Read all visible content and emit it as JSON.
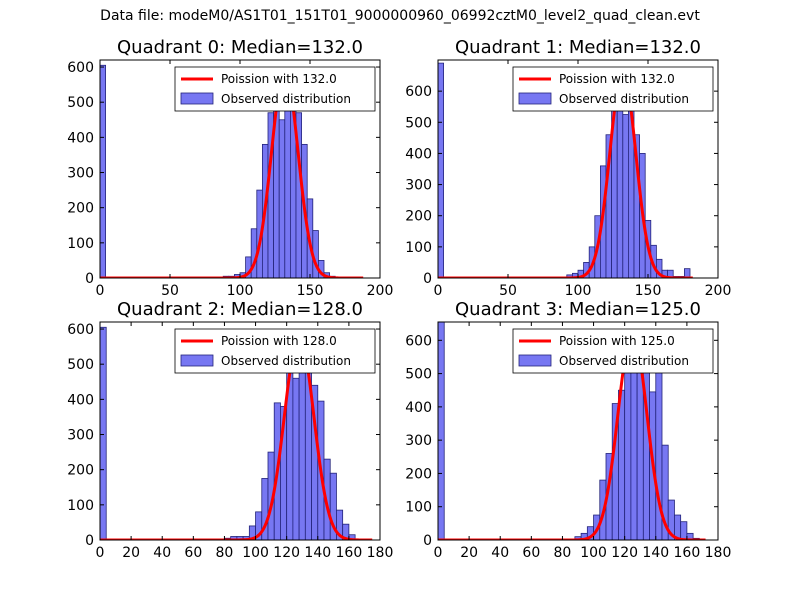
{
  "suptitle": "Data file: modeM0/AS1T01_151T01_9000000960_06992cztM0_level2_quad_clean.evt",
  "colors": {
    "bar_fill": "#7777f2",
    "bar_edge": "#23237a",
    "curve": "#ff0000",
    "axis": "#000000"
  },
  "chart_data": [
    {
      "type": "bar",
      "title": "Quadrant 0: Median=132.0",
      "median": 132.0,
      "xlim": [
        0,
        200
      ],
      "xticks": [
        0,
        50,
        100,
        150,
        200
      ],
      "ylim": [
        0,
        620
      ],
      "yticks": [
        0,
        100,
        200,
        300,
        400,
        500,
        600
      ],
      "bin_width": 4,
      "bins": [
        [
          0,
          605
        ],
        [
          88,
          5
        ],
        [
          92,
          5
        ],
        [
          96,
          10
        ],
        [
          100,
          15
        ],
        [
          104,
          60
        ],
        [
          108,
          140
        ],
        [
          112,
          250
        ],
        [
          116,
          380
        ],
        [
          120,
          470
        ],
        [
          124,
          565
        ],
        [
          128,
          450
        ],
        [
          132,
          585
        ],
        [
          136,
          550
        ],
        [
          140,
          470
        ],
        [
          144,
          380
        ],
        [
          148,
          225
        ],
        [
          152,
          135
        ],
        [
          156,
          50
        ],
        [
          160,
          15
        ],
        [
          164,
          5
        ]
      ],
      "curve_label": "Poission with 132.0",
      "hist_label": "Observed distribution",
      "curve_peak": 590,
      "curve_sigma": 9.5,
      "curve_x_min": 0,
      "curve_x_max": 188
    },
    {
      "type": "bar",
      "title": "Quadrant 1: Median=132.0",
      "median": 132.0,
      "xlim": [
        0,
        200
      ],
      "xticks": [
        0,
        50,
        100,
        150,
        200
      ],
      "ylim": [
        0,
        700
      ],
      "yticks": [
        0,
        100,
        200,
        300,
        400,
        500,
        600
      ],
      "bin_width": 4,
      "bins": [
        [
          0,
          690
        ],
        [
          92,
          10
        ],
        [
          96,
          15
        ],
        [
          100,
          25
        ],
        [
          104,
          50
        ],
        [
          108,
          100
        ],
        [
          112,
          200
        ],
        [
          116,
          360
        ],
        [
          120,
          460
        ],
        [
          124,
          570
        ],
        [
          128,
          660
        ],
        [
          132,
          525
        ],
        [
          136,
          650
        ],
        [
          140,
          460
        ],
        [
          144,
          400
        ],
        [
          148,
          185
        ],
        [
          152,
          105
        ],
        [
          156,
          60
        ],
        [
          160,
          25
        ],
        [
          164,
          25
        ],
        [
          168,
          5
        ],
        [
          172,
          5
        ],
        [
          176,
          30
        ]
      ],
      "curve_label": "Poission with 132.0",
      "hist_label": "Observed distribution",
      "curve_peak": 660,
      "curve_sigma": 9.3,
      "curve_x_min": 0,
      "curve_x_max": 182
    },
    {
      "type": "bar",
      "title": "Quadrant 2: Median=128.0",
      "median": 128.0,
      "xlim": [
        0,
        180
      ],
      "xticks": [
        0,
        20,
        40,
        60,
        80,
        100,
        120,
        140,
        160,
        180
      ],
      "ylim": [
        0,
        620
      ],
      "yticks": [
        0,
        100,
        200,
        300,
        400,
        500,
        600
      ],
      "bin_width": 4,
      "bins": [
        [
          0,
          605
        ],
        [
          80,
          5
        ],
        [
          84,
          10
        ],
        [
          88,
          10
        ],
        [
          92,
          10
        ],
        [
          96,
          40
        ],
        [
          100,
          80
        ],
        [
          104,
          175
        ],
        [
          108,
          250
        ],
        [
          112,
          390
        ],
        [
          116,
          380
        ],
        [
          120,
          480
        ],
        [
          124,
          460
        ],
        [
          128,
          575
        ],
        [
          132,
          575
        ],
        [
          136,
          440
        ],
        [
          140,
          395
        ],
        [
          144,
          230
        ],
        [
          148,
          190
        ],
        [
          152,
          85
        ],
        [
          156,
          45
        ],
        [
          160,
          15
        ]
      ],
      "curve_label": "Poission with 128.0",
      "hist_label": "Observed distribution",
      "curve_peak": 580,
      "curve_sigma": 9.5,
      "curve_x_min": 0,
      "curve_x_max": 175
    },
    {
      "type": "bar",
      "title": "Quadrant 3: Median=125.0",
      "median": 125.0,
      "xlim": [
        0,
        180
      ],
      "xticks": [
        0,
        20,
        40,
        60,
        80,
        100,
        120,
        140,
        160,
        180
      ],
      "ylim": [
        0,
        655
      ],
      "yticks": [
        0,
        100,
        200,
        300,
        400,
        500,
        600
      ],
      "bin_width": 4,
      "bins": [
        [
          0,
          655
        ],
        [
          88,
          10
        ],
        [
          92,
          20
        ],
        [
          96,
          40
        ],
        [
          100,
          75
        ],
        [
          104,
          180
        ],
        [
          108,
          260
        ],
        [
          112,
          410
        ],
        [
          116,
          450
        ],
        [
          120,
          560
        ],
        [
          124,
          540
        ],
        [
          128,
          605
        ],
        [
          132,
          575
        ],
        [
          136,
          445
        ],
        [
          140,
          530
        ],
        [
          144,
          285
        ],
        [
          148,
          120
        ],
        [
          152,
          75
        ],
        [
          156,
          55
        ],
        [
          160,
          20
        ],
        [
          164,
          5
        ]
      ],
      "curve_label": "Poission with 125.0",
      "hist_label": "Observed distribution",
      "curve_peak": 625,
      "curve_sigma": 9.3,
      "curve_x_min": 0,
      "curve_x_max": 172
    }
  ]
}
